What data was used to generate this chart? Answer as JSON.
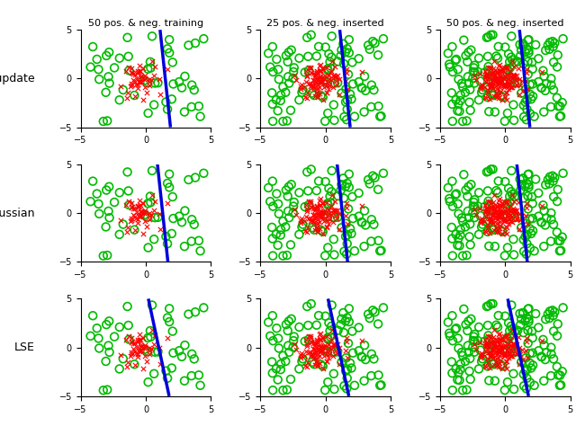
{
  "col_titles": [
    "50 pos. & neg. training",
    "25 pos. & neg. inserted",
    "50 pos. & neg. inserted"
  ],
  "row_labels": [
    "no update",
    "Gaussian",
    "LSE"
  ],
  "xlim": [
    -5,
    5
  ],
  "ylim": [
    -5,
    5
  ],
  "xticks": [
    -5,
    0,
    5
  ],
  "yticks": [
    -5,
    0,
    5
  ],
  "green_color": "#00bb00",
  "red_color": "#ff0000",
  "blue_color": "#0000dd",
  "background": "#ffffff",
  "line_width": 2.5,
  "circle_size": 40,
  "red_marker_size": 15,
  "n_green": [
    50,
    100,
    150
  ],
  "n_red": [
    50,
    100,
    150
  ],
  "line_defs": [
    [
      {
        "x": [
          1.1,
          1.9
        ],
        "y": [
          5,
          -5
        ]
      },
      {
        "x": [
          1.1,
          1.9
        ],
        "y": [
          5,
          -5
        ]
      },
      {
        "x": [
          1.1,
          1.9
        ],
        "y": [
          5,
          -5
        ]
      }
    ],
    [
      {
        "x": [
          0.9,
          1.7
        ],
        "y": [
          5,
          -5
        ]
      },
      {
        "x": [
          0.9,
          1.7
        ],
        "y": [
          5,
          -5
        ]
      },
      {
        "x": [
          0.9,
          1.7
        ],
        "y": [
          5,
          -5
        ]
      }
    ],
    [
      {
        "x": [
          0.2,
          1.8
        ],
        "y": [
          5,
          -5
        ]
      },
      {
        "x": [
          0.2,
          1.8
        ],
        "y": [
          5,
          -5
        ]
      },
      {
        "x": [
          0.2,
          1.8
        ],
        "y": [
          5,
          -5
        ]
      }
    ]
  ]
}
